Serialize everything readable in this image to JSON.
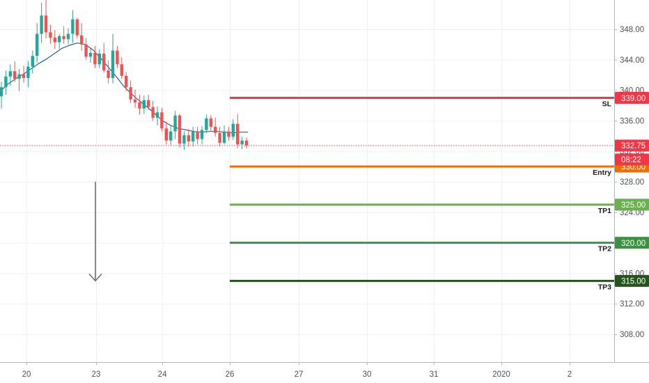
{
  "chart_data": {
    "type": "candlestick",
    "y_axis": {
      "ticks": [
        "348.00",
        "344.00",
        "340.00",
        "336.00",
        "332.00",
        "328.00",
        "324.00",
        "320.00",
        "316.00",
        "312.00",
        "308.00"
      ],
      "tick_values": [
        348,
        344,
        340,
        336,
        332,
        328,
        324,
        320,
        316,
        312,
        308
      ],
      "range": [
        304.2,
        350.0
      ]
    },
    "x_axis": {
      "ticks": [
        "20",
        "23",
        "24",
        "26",
        "27",
        "30",
        "31",
        "2020",
        "2"
      ]
    },
    "current_price": {
      "value": 332.75,
      "label": "332.75",
      "countdown": "08:22"
    },
    "levels": [
      {
        "name": "SL",
        "price": 339.0,
        "label": "339.00",
        "color": "#f23645"
      },
      {
        "name": "Entry",
        "price": 330.0,
        "label": "330.00",
        "color": "#ef6c00"
      },
      {
        "name": "TP1",
        "price": 325.0,
        "label": "325.00",
        "color": "#6aaf50"
      },
      {
        "name": "TP2",
        "price": 320.0,
        "label": "320.00",
        "color": "#3d9142"
      },
      {
        "name": "TP3",
        "price": 315.0,
        "label": "315.00",
        "color": "#24531b"
      }
    ],
    "arrow": {
      "direction": "down",
      "from": 328.0,
      "to": 315.0
    },
    "moving_average": {
      "color": "#2f5c8a",
      "values": [
        339.8,
        340.8,
        341.5,
        342.1,
        342.8,
        343.5,
        344.1,
        344.8,
        345.5,
        345.9,
        346.2,
        346.0,
        345.3,
        344.2,
        343.0,
        341.8,
        340.5,
        339.5,
        338.6,
        337.8,
        336.9,
        336.0,
        335.4,
        335.0,
        334.8,
        334.6,
        334.5,
        334.6,
        334.6,
        334.5,
        334.4,
        334.5,
        334.5
      ]
    },
    "candles": [
      [
        339.2,
        341.1,
        337.6,
        340.4
      ],
      [
        340.4,
        342.6,
        339.4,
        341.8
      ],
      [
        341.8,
        343.4,
        340.6,
        342.5
      ],
      [
        342.5,
        343.8,
        341.1,
        341.5
      ],
      [
        341.5,
        342.8,
        339.9,
        342.1
      ],
      [
        342.1,
        343.2,
        341.0,
        341.6
      ],
      [
        341.6,
        343.8,
        340.4,
        343.1
      ],
      [
        343.1,
        345.2,
        342.2,
        344.5
      ],
      [
        344.5,
        348.8,
        343.6,
        347.4
      ],
      [
        347.4,
        351.5,
        346.2,
        349.8
      ],
      [
        349.8,
        351.9,
        346.8,
        347.6
      ],
      [
        347.6,
        348.6,
        346.1,
        346.9
      ],
      [
        346.9,
        347.9,
        345.4,
        346.3
      ],
      [
        346.3,
        347.4,
        345.4,
        347.1
      ],
      [
        347.1,
        348.4,
        346.1,
        346.7
      ],
      [
        346.7,
        348.1,
        346.0,
        347.4
      ],
      [
        347.4,
        350.5,
        346.2,
        349.3
      ],
      [
        349.3,
        349.5,
        346.8,
        347.2
      ],
      [
        347.2,
        348.8,
        345.2,
        346.0
      ],
      [
        346.0,
        346.8,
        344.0,
        344.4
      ],
      [
        344.4,
        345.5,
        343.6,
        344.9
      ],
      [
        344.9,
        345.8,
        342.9,
        343.4
      ],
      [
        343.4,
        345.4,
        342.9,
        344.8
      ],
      [
        344.8,
        346.2,
        342.3,
        342.6
      ],
      [
        342.6,
        343.9,
        340.9,
        341.6
      ],
      [
        341.6,
        347.4,
        340.9,
        345.2
      ],
      [
        345.2,
        345.8,
        342.9,
        343.4
      ],
      [
        343.4,
        344.3,
        341.5,
        341.9
      ],
      [
        341.9,
        342.4,
        339.9,
        340.4
      ],
      [
        340.4,
        341.3,
        338.3,
        338.8
      ],
      [
        338.8,
        340.1,
        337.7,
        338.4
      ],
      [
        338.4,
        339.4,
        336.8,
        337.6
      ],
      [
        337.6,
        339.3,
        336.9,
        338.7
      ],
      [
        338.7,
        339.4,
        337.4,
        337.8
      ],
      [
        337.8,
        338.6,
        336.0,
        336.4
      ],
      [
        336.4,
        337.9,
        335.4,
        337.1
      ],
      [
        337.1,
        337.7,
        334.6,
        335.0
      ],
      [
        335.0,
        335.9,
        332.9,
        333.4
      ],
      [
        333.4,
        335.4,
        332.8,
        334.6
      ],
      [
        334.6,
        337.3,
        333.6,
        336.7
      ],
      [
        336.7,
        336.9,
        332.5,
        333.0
      ],
      [
        333.0,
        334.6,
        332.2,
        334.1
      ],
      [
        334.1,
        334.9,
        332.6,
        333.3
      ],
      [
        333.3,
        335.2,
        332.6,
        334.6
      ],
      [
        334.6,
        335.2,
        332.9,
        333.6
      ],
      [
        333.6,
        335.3,
        332.9,
        334.8
      ],
      [
        334.8,
        336.8,
        334.4,
        336.3
      ],
      [
        336.3,
        336.7,
        334.7,
        335.2
      ],
      [
        335.2,
        336.4,
        333.9,
        334.4
      ],
      [
        334.4,
        335.2,
        332.6,
        333.1
      ],
      [
        333.1,
        335.4,
        332.9,
        334.6
      ],
      [
        334.6,
        335.2,
        333.4,
        333.9
      ],
      [
        333.9,
        336.2,
        333.5,
        335.6
      ],
      [
        335.6,
        336.9,
        332.4,
        332.9
      ],
      [
        332.9,
        333.9,
        332.3,
        333.4
      ],
      [
        333.4,
        333.8,
        332.4,
        332.75
      ]
    ]
  }
}
